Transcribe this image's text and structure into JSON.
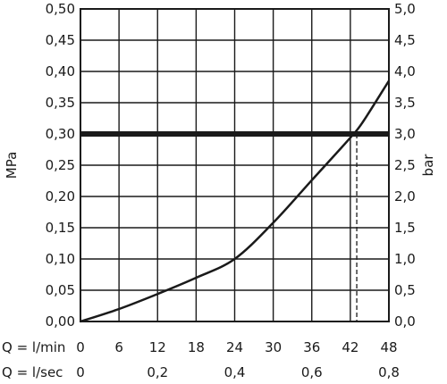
{
  "chart_data": {
    "type": "line",
    "left_axis": {
      "label": "MPa",
      "ylim": [
        0,
        0.5
      ],
      "ticks": [
        "0,00",
        "0,05",
        "0,10",
        "0,15",
        "0,20",
        "0,25",
        "0,30",
        "0,35",
        "0,40",
        "0,45",
        "0,50"
      ]
    },
    "right_axis": {
      "label": "bar",
      "ylim": [
        0,
        5
      ],
      "ticks": [
        "0,0",
        "0,5",
        "1,0",
        "1,5",
        "2,0",
        "2,5",
        "3,0",
        "3,5",
        "4,0",
        "4,5",
        "5,0"
      ]
    },
    "x_axis_lmin": {
      "label": "Q = l/min",
      "xlim": [
        0,
        48
      ],
      "ticks": [
        "0",
        "6",
        "12",
        "18",
        "24",
        "30",
        "36",
        "42",
        "48"
      ]
    },
    "x_axis_lsec": {
      "label": "Q = l/sec",
      "ticks": [
        "0",
        "0,2",
        "0,4",
        "0,6",
        "0,8"
      ]
    },
    "grid": true,
    "series": [
      {
        "x": [
          0,
          6,
          12,
          18,
          24,
          30,
          36,
          42,
          44,
          48
        ],
        "y": [
          0.0,
          0.02,
          0.044,
          0.07,
          0.1,
          0.158,
          0.226,
          0.294,
          0.32,
          0.385
        ]
      }
    ],
    "reference_line": {
      "y": 0.3,
      "color": "#1a1a1a"
    },
    "marker": {
      "x": 43.0,
      "y": 0.3,
      "style": "dashed"
    }
  }
}
